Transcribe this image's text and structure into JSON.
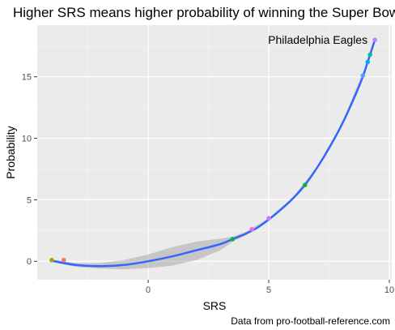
{
  "chart_data": {
    "type": "scatter",
    "title": "Higher SRS means higher probability of winning the Super Bowl",
    "xlabel": "SRS",
    "ylabel": "Probability",
    "caption": "Data from pro-football-reference.com",
    "annotation": {
      "text": "Philadelphia Eagles",
      "x": 9.4,
      "y": 18
    },
    "xlim": [
      -4.6,
      10.1
    ],
    "ylim": [
      -1.5,
      19.2
    ],
    "x_ticks": [
      0,
      5,
      10
    ],
    "x_tick_labels": [
      "0",
      "5",
      "10"
    ],
    "y_ticks": [
      0,
      5,
      10,
      15
    ],
    "y_tick_labels": [
      "0",
      "5",
      "10",
      "15"
    ],
    "grid": true,
    "legend": "none",
    "points": [
      {
        "x": -4.0,
        "y": 0.1,
        "color": "#B79F00"
      },
      {
        "x": -3.5,
        "y": 0.1,
        "color": "#F8766D"
      },
      {
        "x": 3.5,
        "y": 1.8,
        "color": "#00BA38"
      },
      {
        "x": 4.3,
        "y": 2.6,
        "color": "#F564E3"
      },
      {
        "x": 5.0,
        "y": 3.5,
        "color": "#C77CFF"
      },
      {
        "x": 6.5,
        "y": 6.2,
        "color": "#00BA38"
      },
      {
        "x": 8.9,
        "y": 15.1,
        "color": "#619CFF"
      },
      {
        "x": 9.1,
        "y": 16.2,
        "color": "#00A9FF"
      },
      {
        "x": 9.2,
        "y": 16.8,
        "color": "#00C19F"
      },
      {
        "x": 9.4,
        "y": 18.0,
        "color": "#C77CFF"
      }
    ],
    "smooth": {
      "color": "#3366FF",
      "fit": [
        {
          "x": -4.0,
          "y": 0.05
        },
        {
          "x": -3.0,
          "y": -0.3
        },
        {
          "x": -2.0,
          "y": -0.4
        },
        {
          "x": -1.0,
          "y": -0.3
        },
        {
          "x": 0.0,
          "y": 0.0
        },
        {
          "x": 1.0,
          "y": 0.4
        },
        {
          "x": 2.0,
          "y": 0.9
        },
        {
          "x": 3.0,
          "y": 1.4
        },
        {
          "x": 3.5,
          "y": 1.8
        },
        {
          "x": 4.0,
          "y": 2.2
        },
        {
          "x": 4.5,
          "y": 2.7
        },
        {
          "x": 5.0,
          "y": 3.4
        },
        {
          "x": 5.5,
          "y": 4.2
        },
        {
          "x": 6.0,
          "y": 5.1
        },
        {
          "x": 6.5,
          "y": 6.2
        },
        {
          "x": 7.0,
          "y": 7.6
        },
        {
          "x": 7.5,
          "y": 9.2
        },
        {
          "x": 8.0,
          "y": 11.0
        },
        {
          "x": 8.5,
          "y": 13.1
        },
        {
          "x": 8.9,
          "y": 15.0
        },
        {
          "x": 9.1,
          "y": 16.2
        },
        {
          "x": 9.4,
          "y": 18.0
        }
      ],
      "band": [
        {
          "x": -4.0,
          "lo": -0.05,
          "hi": 0.15
        },
        {
          "x": -3.0,
          "lo": -0.45,
          "hi": -0.15
        },
        {
          "x": -2.0,
          "lo": -0.6,
          "hi": -0.15
        },
        {
          "x": -1.0,
          "lo": -0.65,
          "hi": 0.1
        },
        {
          "x": 0.0,
          "lo": -0.55,
          "hi": 0.55
        },
        {
          "x": 1.0,
          "lo": -0.35,
          "hi": 1.15
        },
        {
          "x": 2.0,
          "lo": 0.1,
          "hi": 1.6
        },
        {
          "x": 3.0,
          "lo": 0.9,
          "hi": 1.85
        },
        {
          "x": 3.5,
          "lo": 1.6,
          "hi": 2.0
        },
        {
          "x": 4.0,
          "lo": 2.05,
          "hi": 2.35
        },
        {
          "x": 5.0,
          "lo": 3.3,
          "hi": 3.5
        },
        {
          "x": 6.0,
          "lo": 5.0,
          "hi": 5.2
        },
        {
          "x": 7.0,
          "lo": 7.5,
          "hi": 7.7
        },
        {
          "x": 8.0,
          "lo": 10.9,
          "hi": 11.1
        },
        {
          "x": 9.0,
          "lo": 15.5,
          "hi": 15.8
        },
        {
          "x": 9.4,
          "lo": 17.9,
          "hi": 18.1
        }
      ]
    }
  }
}
